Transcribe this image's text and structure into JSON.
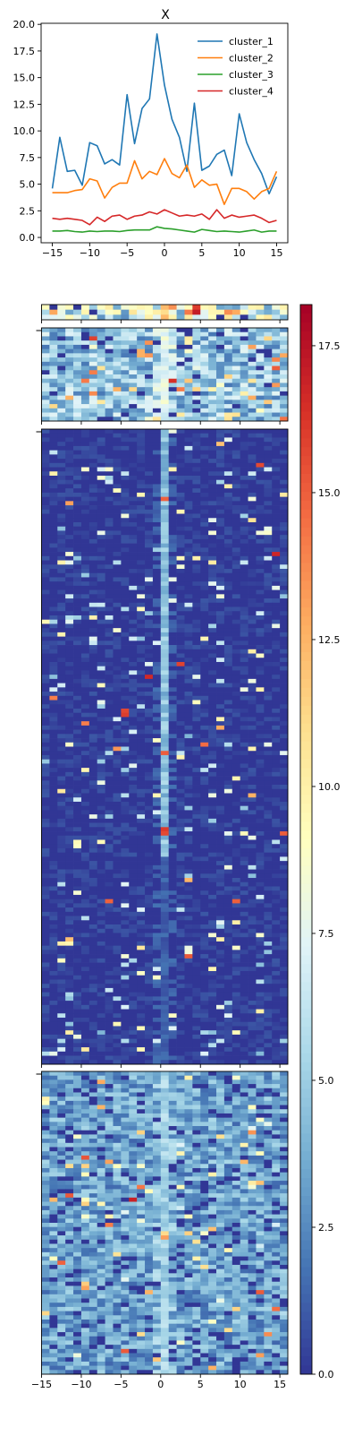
{
  "chart_data": [
    {
      "type": "line",
      "title": "X",
      "xlabel": "",
      "ylabel": "",
      "x": [
        -15,
        -14,
        -13,
        -12,
        -11,
        -10,
        -9,
        -8,
        -7,
        -6,
        -5,
        -4,
        -3,
        -2,
        -1,
        0,
        1,
        2,
        3,
        4,
        5,
        6,
        7,
        8,
        9,
        10,
        11,
        12,
        13,
        14,
        15
      ],
      "xlim": [
        -16.5,
        16.5
      ],
      "ylim": [
        -0.5,
        20.1
      ],
      "xticks": [
        -15,
        -10,
        -5,
        0,
        5,
        10,
        15
      ],
      "yticks": [
        0.0,
        2.5,
        5.0,
        7.5,
        10.0,
        12.5,
        15.0,
        17.5,
        20.0
      ],
      "xtick_labels": [
        "−15",
        "−10",
        "−5",
        "0",
        "5",
        "10",
        "15"
      ],
      "ytick_labels": [
        "0.0",
        "2.5",
        "5.0",
        "7.5",
        "10.0",
        "12.5",
        "15.0",
        "17.5",
        "20.0"
      ],
      "legend": "top-right",
      "grid": false,
      "series": [
        {
          "name": "cluster_1",
          "color": "#1f77b4",
          "values": [
            4.6,
            9.4,
            6.2,
            6.3,
            4.9,
            8.9,
            8.6,
            6.9,
            7.3,
            6.8,
            13.4,
            8.8,
            12.1,
            13.0,
            19.1,
            14.3,
            11.1,
            9.4,
            6.2,
            12.6,
            6.3,
            6.7,
            7.8,
            8.2,
            5.8,
            11.6,
            8.9,
            7.3,
            6.0,
            4.1,
            5.7
          ]
        },
        {
          "name": "cluster_2",
          "color": "#ff7f0e",
          "values": [
            4.2,
            4.2,
            4.2,
            4.4,
            4.5,
            5.5,
            5.3,
            3.7,
            4.7,
            5.1,
            5.1,
            7.2,
            5.5,
            6.2,
            5.9,
            7.4,
            6.0,
            5.6,
            6.8,
            4.7,
            5.4,
            4.9,
            5.0,
            3.1,
            4.6,
            4.6,
            4.3,
            3.6,
            4.3,
            4.6,
            6.2
          ]
        },
        {
          "name": "cluster_3",
          "color": "#2ca02c",
          "values": [
            0.6,
            0.6,
            0.65,
            0.55,
            0.5,
            0.6,
            0.55,
            0.6,
            0.6,
            0.55,
            0.65,
            0.7,
            0.7,
            0.7,
            1.0,
            0.85,
            0.8,
            0.7,
            0.6,
            0.5,
            0.75,
            0.65,
            0.55,
            0.6,
            0.55,
            0.5,
            0.6,
            0.7,
            0.5,
            0.6,
            0.6
          ]
        },
        {
          "name": "cluster_4",
          "color": "#d62728",
          "values": [
            1.8,
            1.7,
            1.8,
            1.7,
            1.6,
            1.2,
            1.9,
            1.5,
            2.0,
            2.1,
            1.7,
            2.0,
            2.1,
            2.4,
            2.2,
            2.6,
            2.3,
            2.0,
            2.1,
            2.0,
            2.2,
            1.7,
            2.6,
            1.8,
            2.1,
            1.9,
            2.0,
            2.1,
            1.8,
            1.4,
            1.6
          ]
        }
      ]
    },
    {
      "type": "heatmap",
      "title": "",
      "xlabel": "",
      "ylabel": "",
      "x_edges": [
        -15,
        16
      ],
      "xticks": [
        -15,
        -10,
        -5,
        0,
        5,
        10,
        15
      ],
      "xtick_labels": [
        "−15",
        "−10",
        "−5",
        "0",
        "5",
        "10",
        "15"
      ],
      "colormap": "RdYlBu_r",
      "vmin": 0,
      "vmax": 18.2,
      "colorbar_ticks": [
        0.0,
        2.5,
        5.0,
        7.5,
        10.0,
        12.5,
        15.0,
        17.5
      ],
      "colorbar_tick_labels": [
        "0.0",
        "2.5",
        "5.0",
        "7.5",
        "10.0",
        "12.5",
        "15.0",
        "17.5"
      ],
      "columns": 31,
      "panels": [
        {
          "name": "cluster_1",
          "rows": 3,
          "peak_mean": 12,
          "base_mean": 6.5,
          "max_peak": 18.2,
          "spike_rate": 0.12,
          "zero_rate": 0.05
        },
        {
          "name": "cluster_2",
          "rows": 22,
          "peak_mean": 7.5,
          "base_mean": 4.7,
          "max_peak": 14,
          "spike_rate": 0.08,
          "zero_rate": 0.08
        },
        {
          "name": "cluster_3",
          "rows": 150,
          "peak_mean": 4.5,
          "base_mean": 0.6,
          "max_peak": 17,
          "spike_rate": 0.05,
          "zero_rate": 0.62
        },
        {
          "name": "cluster_4",
          "rows": 72,
          "peak_mean": 5.3,
          "base_mean": 3.4,
          "max_peak": 17.5,
          "spike_rate": 0.03,
          "zero_rate": 0.12
        }
      ]
    }
  ]
}
